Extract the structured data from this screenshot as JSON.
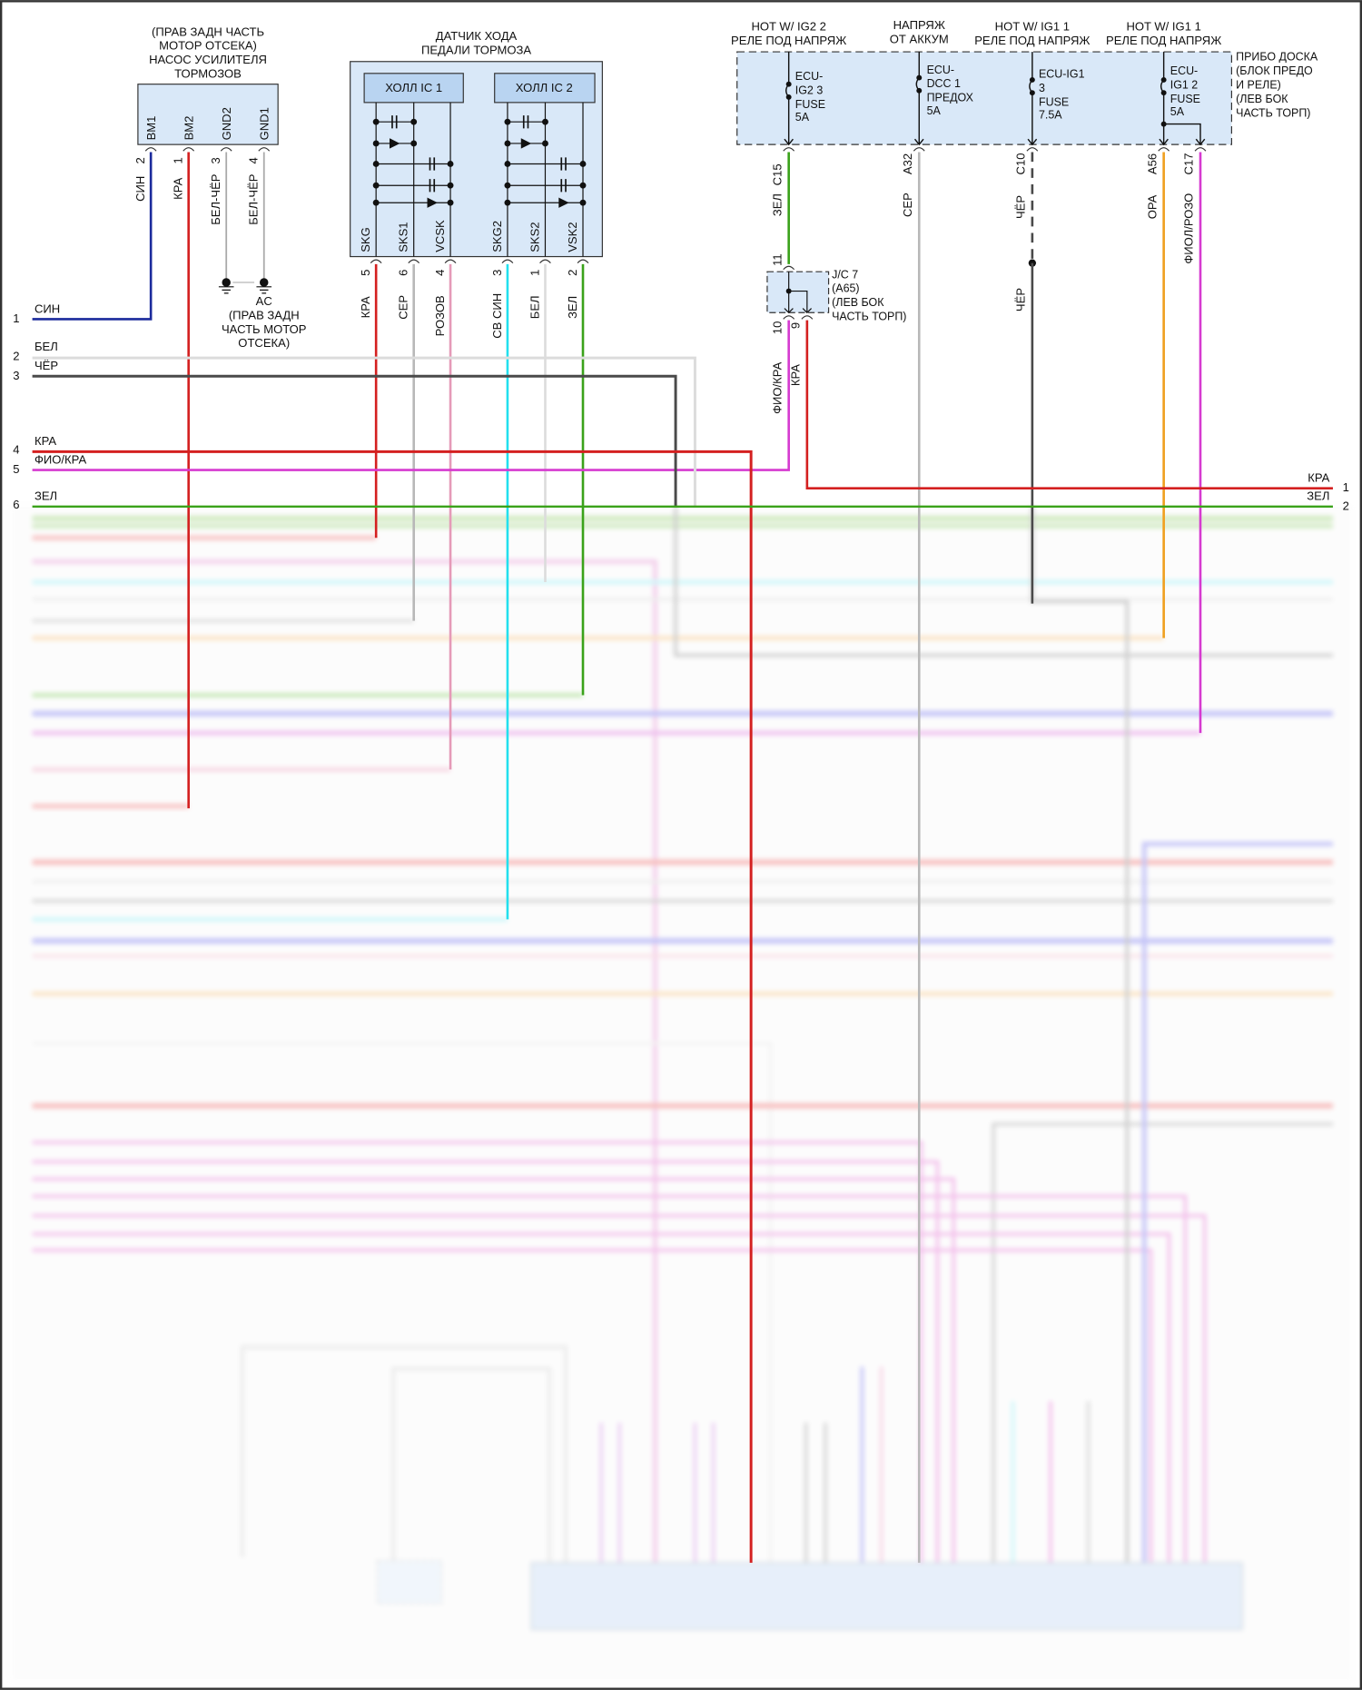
{
  "pump": {
    "title": [
      "(ПРАВ ЗАДН ЧАСТЬ",
      "МОТОР ОТСЕКА)",
      "НАСОС УСИЛИТЕЛЯ",
      "ТОРМОЗОВ"
    ],
    "pins": [
      {
        "name": "BM1",
        "num": "2",
        "wire": "СИН"
      },
      {
        "name": "BM2",
        "num": "1",
        "wire": "КРА"
      },
      {
        "name": "GND2",
        "num": "3",
        "wire": "БЕЛ-ЧЁР"
      },
      {
        "name": "GND1",
        "num": "4",
        "wire": "БЕЛ-ЧЁР"
      }
    ]
  },
  "ground": {
    "label": [
      "AC",
      "(ПРАВ ЗАДН",
      "ЧАСТЬ МОТОР",
      "ОТСЕКА)"
    ]
  },
  "sensor": {
    "title": [
      "ДАТЧИК ХОДА",
      "ПЕДАЛИ ТОРМОЗА"
    ],
    "ic1": "ХОЛЛ IC 1",
    "ic2": "ХОЛЛ IC 2",
    "pins": [
      {
        "name": "SKG",
        "num": "5",
        "wire": "КРА"
      },
      {
        "name": "SKS1",
        "num": "6",
        "wire": "СЕР"
      },
      {
        "name": "VCSK",
        "num": "4",
        "wire": "РОЗОВ"
      },
      {
        "name": "SKG2",
        "num": "3",
        "wire": "СВ СИН"
      },
      {
        "name": "SKS2",
        "num": "1",
        "wire": "БЕЛ"
      },
      {
        "name": "VSK2",
        "num": "2",
        "wire": "ЗЕЛ"
      }
    ]
  },
  "fuse_box": {
    "location": [
      "ПРИБО ДОСКА",
      "(БЛОК ПРЕДО",
      "И РЕЛЕ)",
      "(ЛЕВ БОК",
      "ЧАСТЬ ТОРП)"
    ],
    "sources": [
      {
        "title": [
          "HOT W/ IG2 2",
          "РЕЛЕ ПОД НАПРЯЖ"
        ],
        "fuse": [
          "ECU-",
          "IG2 3",
          "FUSE",
          "5A"
        ],
        "pin": "C15",
        "wire": "ЗЕЛ"
      },
      {
        "title": [
          "НАПРЯЖ",
          "ОТ АККУМ"
        ],
        "fuse": [
          "ECU-",
          "DCC 1",
          "ПРЕДОХ",
          "5A"
        ],
        "pin": "A32",
        "wire": "СЕР"
      },
      {
        "title": [
          "HOT W/ IG1 1",
          "РЕЛЕ ПОД НАПРЯЖ"
        ],
        "fuse": [
          "ECU-IG1",
          "3",
          "FUSE",
          "7.5A"
        ],
        "pin": "C10",
        "wire": "ЧЁР",
        "wire2": "ЧЁР"
      },
      {
        "title": [
          "HOT W/ IG1 1",
          "РЕЛЕ ПОД НАПРЯЖ"
        ],
        "fuse": [
          "ECU-",
          "IG1 2",
          "FUSE",
          "5A"
        ],
        "pin": "A56",
        "wire": "ОРА",
        "pin2": "C17",
        "wire2": "ФИОЛ/РОЗО"
      }
    ]
  },
  "jc": {
    "label": [
      "J/C 7",
      "(A65)",
      "(ЛЕВ БОК",
      "ЧАСТЬ ТОРП)"
    ],
    "pin_in": "11",
    "pins_out": [
      {
        "num": "10",
        "wire": "ФИО/КРА"
      },
      {
        "num": "9",
        "wire": "КРА"
      }
    ]
  },
  "left_rows": [
    {
      "num": "1",
      "label": "СИН"
    },
    {
      "num": "2",
      "label": "БЕЛ"
    },
    {
      "num": "3",
      "label": "ЧЁР"
    },
    {
      "num": "4",
      "label": "КРА"
    },
    {
      "num": "5",
      "label": "ФИО/КРА"
    },
    {
      "num": "6",
      "label": "ЗЕЛ"
    }
  ],
  "right_rows": [
    {
      "num": "1",
      "label": "КРА"
    },
    {
      "num": "2",
      "label": "ЗЕЛ"
    }
  ],
  "colors": {
    "blue": "#1b2a9c",
    "red": "#d42020",
    "green": "#3aa21a",
    "cyan": "#22e0ee",
    "grey": "#b8b8b8",
    "white": "#dcdcdc",
    "black": "#4a4a4a",
    "pink": "#e59ab8",
    "magenta": "#d63ad0",
    "orange": "#f0a020",
    "box": "#d9e8f8"
  }
}
